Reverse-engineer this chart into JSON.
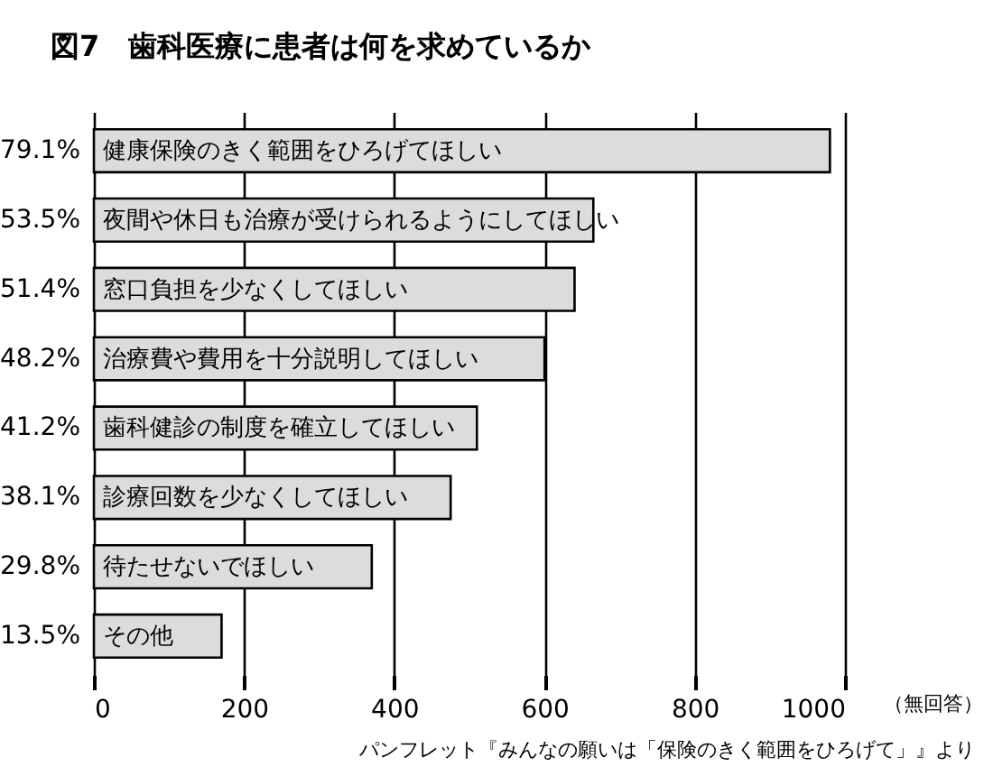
{
  "chart_data": {
    "type": "bar",
    "orientation": "horizontal",
    "title": "図7　歯科医療に患者は何を求めているか",
    "categories": [
      "79.1%",
      "53.5%",
      "51.4%",
      "48.2%",
      "41.2%",
      "38.1%",
      "29.8%",
      "13.5%"
    ],
    "values": [
      980,
      665,
      640,
      600,
      510,
      475,
      370,
      170
    ],
    "color": "#dcdcdc",
    "xlim": [
      0,
      1000
    ],
    "xticks": [
      0,
      200,
      400,
      600,
      800,
      1000
    ],
    "xlabel": "（無回答）",
    "grid": "x",
    "annotations": [
      {
        "text": "健康保険のきく範囲をひろげてほしい",
        "y": "79.1%"
      },
      {
        "text": "夜間や休日も治療が受けられるようにしてほしい",
        "y": "53.5%"
      },
      {
        "text": "窓口負担を少なくしてほしい",
        "y": "51.4%"
      },
      {
        "text": "治療費や費用を十分説明してほしい",
        "y": "48.2%"
      },
      {
        "text": "歯科健診の制度を確立してほしい",
        "y": "41.2%"
      },
      {
        "text": "診療回数を少なくしてほしい",
        "y": "38.1%"
      },
      {
        "text": "待たせないでほしい",
        "y": "29.8%"
      },
      {
        "text": "その他",
        "y": "13.5%"
      },
      "パンフレット『みんなの願いは「保険のきく範囲をひろげて」』より"
    ]
  }
}
